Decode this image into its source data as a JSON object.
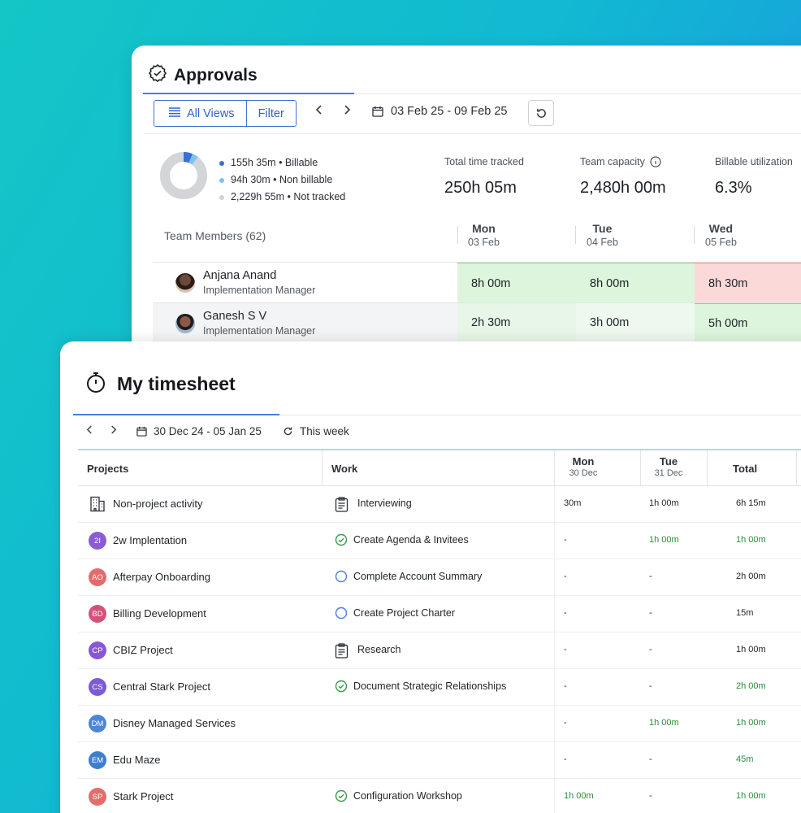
{
  "approvals": {
    "title": "Approvals",
    "views_label": "All Views",
    "filter_label": "Filter",
    "date_range": "03 Feb 25 - 09 Feb 25",
    "legend": [
      {
        "value": "155h 35m",
        "label": "Billable",
        "color": "#3a6fd8"
      },
      {
        "value": "94h 30m",
        "label": "Non billable",
        "color": "#7cc3ee"
      },
      {
        "value": "2,229h 55m",
        "label": "Not tracked",
        "color": "#cfd2d6"
      }
    ],
    "legend_text": [
      "155h 35m • Billable",
      "94h 30m • Non billable",
      "2,229h 55m • Not tracked"
    ],
    "stats": [
      {
        "label": "Total time tracked",
        "value": "250h 05m"
      },
      {
        "label": "Team capacity",
        "value": "2,480h 00m"
      },
      {
        "label": "Billable utilization",
        "value": "6.3%"
      }
    ],
    "team_label": "Team Members (62)",
    "days": [
      {
        "day": "Mon",
        "date": "03 Feb"
      },
      {
        "day": "Tue",
        "date": "04 Feb"
      },
      {
        "day": "Wed",
        "date": "05 Feb"
      }
    ],
    "members": [
      {
        "name": "Anjana Anand",
        "role": "Implementation Manager",
        "hours": [
          "8h 00m",
          "8h 00m",
          "8h 30m"
        ]
      },
      {
        "name": "Ganesh S V",
        "role": "Implementation Manager",
        "hours": [
          "2h 30m",
          "3h 00m",
          "5h 00m"
        ]
      }
    ]
  },
  "timesheet": {
    "title": "My timesheet",
    "date_range": "30 Dec 24 - 05 Jan 25",
    "this_week": "This week",
    "headers": {
      "projects": "Projects",
      "work": "Work",
      "mon": "Mon",
      "mon_date": "30 Dec",
      "tue": "Tue",
      "tue_date": "31 Dec",
      "total": "Total"
    },
    "rows": [
      {
        "initials": "",
        "project": "Non-project activity",
        "work_icon": "clipboard-icon",
        "work": "Interviewing",
        "mon": "30m",
        "tue": "1h 00m",
        "total": "6h 15m"
      },
      {
        "initials": "2I",
        "color": "#8a5cd6",
        "project": "2w Implentation",
        "work_icon": "check-circle-icon",
        "work": "Create Agenda & Invitees",
        "mon": "-",
        "tue": "1h 00m",
        "total": "1h 00m"
      },
      {
        "initials": "AO",
        "color": "#e36b6b",
        "project": "Afterpay Onboarding",
        "work_icon": "circle-icon",
        "work": "Complete Account Summary",
        "mon": "-",
        "tue": "-",
        "total": "2h 00m"
      },
      {
        "initials": "BD",
        "color": "#d2527a",
        "project": "Billing Development",
        "work_icon": "circle-icon",
        "work": "Create Project Charter",
        "mon": "-",
        "tue": "-",
        "total": "15m"
      },
      {
        "initials": "CP",
        "color": "#8757d8",
        "project": "CBIZ Project",
        "work_icon": "clipboard-icon",
        "work": "Research",
        "mon": "-",
        "tue": "-",
        "total": "1h 00m"
      },
      {
        "initials": "CS",
        "color": "#7a5ad6",
        "project": "Central Stark Project",
        "work_icon": "check-circle-icon",
        "work": "Document Strategic Relationships",
        "mon": "-",
        "tue": "-",
        "total": "2h 00m"
      },
      {
        "initials": "DM",
        "color": "#4d86d8",
        "project": "Disney Managed Services",
        "work_icon": "",
        "work": "",
        "mon": "-",
        "tue": "1h 00m",
        "total": "1h 00m"
      },
      {
        "initials": "EM",
        "color": "#3d7ed0",
        "project": "Edu Maze",
        "work_icon": "",
        "work": "",
        "mon": "-",
        "tue": "-",
        "total": "45m"
      },
      {
        "initials": "SP",
        "color": "#e66c6c",
        "project": "Stark Project",
        "work_icon": "check-circle-icon",
        "work": "Configuration Workshop",
        "mon": "1h 00m",
        "tue": "-",
        "total": "1h 00m"
      }
    ]
  }
}
